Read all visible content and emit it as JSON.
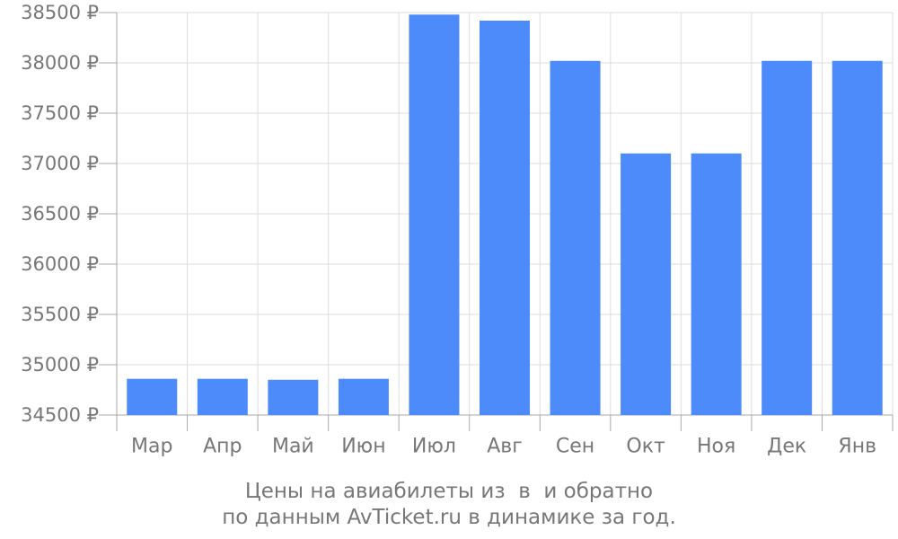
{
  "chart_data": {
    "type": "bar",
    "title": "",
    "xlabel": "",
    "ylabel": "",
    "categories": [
      "Мар",
      "Апр",
      "Май",
      "Июн",
      "Июл",
      "Авг",
      "Сен",
      "Окт",
      "Ноя",
      "Дек",
      "Янв"
    ],
    "values": [
      34860,
      34860,
      34850,
      34860,
      38480,
      38420,
      38020,
      37100,
      37100,
      38020,
      38020
    ],
    "ylim": [
      34500,
      38500
    ],
    "yticks": [
      {
        "value": 34500,
        "label": "34500 ₽"
      },
      {
        "value": 35000,
        "label": "35000 ₽"
      },
      {
        "value": 35500,
        "label": "35500 ₽"
      },
      {
        "value": 36000,
        "label": "36000 ₽"
      },
      {
        "value": 36500,
        "label": "36500 ₽"
      },
      {
        "value": 37000,
        "label": "37000 ₽"
      },
      {
        "value": 37500,
        "label": "37500 ₽"
      },
      {
        "value": 38000,
        "label": "38000 ₽"
      },
      {
        "value": 38500,
        "label": "38500 ₽"
      }
    ],
    "grid": true,
    "bar_color": "#4d8afa",
    "grid_color": "#dddddd",
    "axis_color": "#aaaaaa",
    "text_color": "#777777"
  },
  "caption": {
    "line1": "Цены на авиабилеты из  в  и обратно",
    "line2": "по данным AvTicket.ru в динамике за год."
  }
}
